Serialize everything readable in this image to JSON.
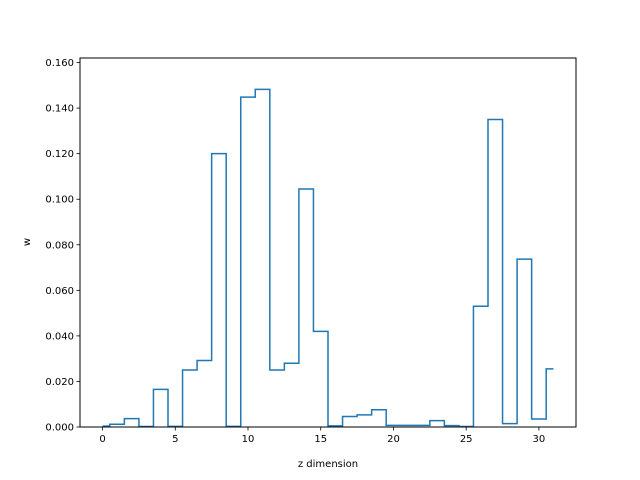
{
  "chart_data": {
    "type": "step",
    "title": "",
    "xlabel": "z dimension",
    "ylabel": "w",
    "xlim": [
      -1.55,
      32.55
    ],
    "ylim": [
      0,
      0.162
    ],
    "xticks": [
      0,
      5,
      10,
      15,
      20,
      25,
      30
    ],
    "yticks": [
      0.0,
      0.02,
      0.04,
      0.06,
      0.08,
      0.1,
      0.12,
      0.14,
      0.16
    ],
    "ytick_labels": [
      "0.000",
      "0.020",
      "0.040",
      "0.060",
      "0.080",
      "0.100",
      "0.120",
      "0.140",
      "0.160"
    ],
    "grid": false,
    "legend": "none",
    "color": "#1f77b4",
    "step_where": "mid",
    "x": [
      0,
      1,
      2,
      3,
      4,
      5,
      6,
      7,
      8,
      9,
      10,
      11,
      12,
      13,
      14,
      15,
      16,
      17,
      18,
      19,
      20,
      21,
      22,
      23,
      24,
      25,
      26,
      27,
      28,
      29,
      30,
      31
    ],
    "values": [
      0.0004,
      0.0012,
      0.0037,
      0.0002,
      0.0165,
      0.0003,
      0.025,
      0.0292,
      0.12,
      0.0003,
      0.1448,
      0.1482,
      0.025,
      0.028,
      0.1045,
      0.042,
      0.0005,
      0.0046,
      0.0053,
      0.0076,
      0.0007,
      0.0007,
      0.0007,
      0.0028,
      0.0006,
      0.0002,
      0.053,
      0.135,
      0.0015,
      0.0737,
      0.0035,
      0.0255
    ]
  }
}
